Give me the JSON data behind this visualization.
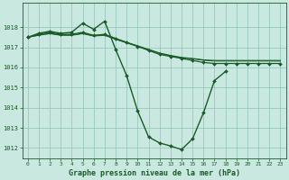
{
  "background_color": "#c8e8e0",
  "grid_color": "#90c4b8",
  "line_color": "#1a5c28",
  "xlabel": "Graphe pression niveau de la mer (hPa)",
  "ylim": [
    1011.5,
    1019.2
  ],
  "xlim": [
    -0.5,
    23.5
  ],
  "yticks": [
    1012,
    1013,
    1014,
    1015,
    1016,
    1017,
    1018
  ],
  "xticks": [
    0,
    1,
    2,
    3,
    4,
    5,
    6,
    7,
    8,
    9,
    10,
    11,
    12,
    13,
    14,
    15,
    16,
    17,
    18,
    19,
    20,
    21,
    22,
    23
  ],
  "series": [
    {
      "x": [
        0,
        1,
        2,
        3,
        4,
        5,
        6,
        7,
        8,
        9,
        10,
        11,
        12,
        13,
        14,
        15,
        16,
        17,
        18
      ],
      "y": [
        1017.5,
        1017.7,
        1017.8,
        1017.7,
        1017.75,
        1018.2,
        1017.9,
        1018.3,
        1016.9,
        1015.6,
        1013.85,
        1012.55,
        1012.25,
        1012.1,
        1011.92,
        1012.45,
        1013.75,
        1015.35,
        1015.8
      ],
      "marker": "D",
      "markersize": 2.0,
      "linewidth": 1.0
    },
    {
      "x": [
        0,
        1,
        2,
        3,
        4,
        5,
        6,
        7,
        8,
        9,
        10,
        11,
        12,
        13,
        14,
        15,
        16,
        17,
        18,
        19,
        20,
        21,
        22,
        23
      ],
      "y": [
        1017.5,
        1017.65,
        1017.75,
        1017.65,
        1017.65,
        1017.75,
        1017.6,
        1017.65,
        1017.45,
        1017.25,
        1017.05,
        1016.85,
        1016.65,
        1016.55,
        1016.45,
        1016.35,
        1016.25,
        1016.2,
        1016.2,
        1016.2,
        1016.2,
        1016.2,
        1016.2,
        1016.2
      ],
      "marker": "D",
      "markersize": 2.0,
      "linewidth": 0.9
    },
    {
      "x": [
        0,
        1,
        2,
        3,
        4,
        5,
        6,
        7,
        8,
        9,
        10,
        11,
        12,
        13,
        14,
        15,
        16,
        17,
        18,
        19,
        20,
        21,
        22,
        23
      ],
      "y": [
        1017.5,
        1017.62,
        1017.7,
        1017.62,
        1017.62,
        1017.7,
        1017.58,
        1017.62,
        1017.42,
        1017.25,
        1017.08,
        1016.9,
        1016.72,
        1016.6,
        1016.5,
        1016.45,
        1016.38,
        1016.35,
        1016.35,
        1016.35,
        1016.35,
        1016.35,
        1016.35,
        1016.35
      ],
      "marker": null,
      "markersize": 0,
      "linewidth": 0.8
    },
    {
      "x": [
        0,
        1,
        2,
        3,
        4,
        5,
        6,
        7,
        8,
        9,
        10,
        11,
        12,
        13,
        14,
        15,
        16,
        17,
        18,
        19,
        20,
        21,
        22,
        23
      ],
      "y": [
        1017.5,
        1017.6,
        1017.68,
        1017.6,
        1017.6,
        1017.68,
        1017.56,
        1017.6,
        1017.4,
        1017.22,
        1017.05,
        1016.88,
        1016.7,
        1016.58,
        1016.48,
        1016.43,
        1016.36,
        1016.32,
        1016.32,
        1016.32,
        1016.32,
        1016.32,
        1016.32,
        1016.32
      ],
      "marker": null,
      "markersize": 0,
      "linewidth": 0.7
    }
  ],
  "xlabel_fontsize": 6,
  "xlabel_fontweight": "bold",
  "tick_fontsize": 5,
  "figsize": [
    3.2,
    2.0
  ],
  "dpi": 100
}
